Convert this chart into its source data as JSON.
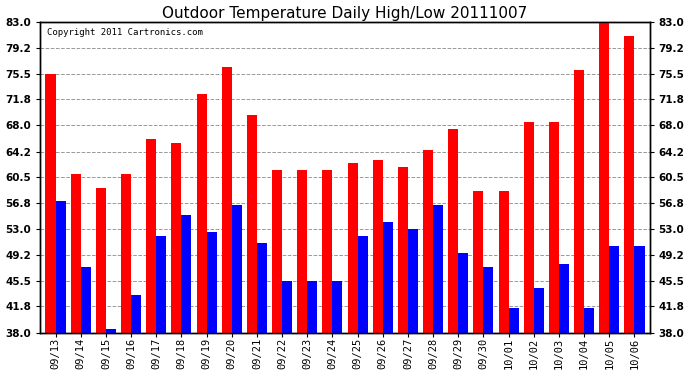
{
  "title": "Outdoor Temperature Daily High/Low 20111007",
  "copyright": "Copyright 2011 Cartronics.com",
  "dates": [
    "09/13",
    "09/14",
    "09/15",
    "09/16",
    "09/17",
    "09/18",
    "09/19",
    "09/20",
    "09/21",
    "09/22",
    "09/23",
    "09/24",
    "09/25",
    "09/26",
    "09/27",
    "09/28",
    "09/29",
    "09/30",
    "10/01",
    "10/02",
    "10/03",
    "10/04",
    "10/05",
    "10/06"
  ],
  "highs": [
    75.5,
    61.0,
    59.0,
    61.0,
    66.0,
    65.5,
    72.5,
    76.5,
    69.5,
    61.5,
    61.5,
    61.5,
    62.5,
    63.0,
    62.0,
    64.5,
    67.5,
    58.5,
    58.5,
    68.5,
    68.5,
    76.0,
    83.0,
    81.0
  ],
  "lows": [
    57.0,
    47.5,
    38.5,
    43.5,
    52.0,
    55.0,
    52.5,
    56.5,
    51.0,
    45.5,
    45.5,
    45.5,
    52.0,
    54.0,
    53.0,
    56.5,
    49.5,
    47.5,
    41.5,
    44.5,
    48.0,
    41.5,
    50.5,
    50.5
  ],
  "high_color": "#ff0000",
  "low_color": "#0000ff",
  "bg_color": "#ffffff",
  "grid_color": "#999999",
  "ymin": 38.0,
  "ymax": 83.0,
  "yticks": [
    38.0,
    41.8,
    45.5,
    49.2,
    53.0,
    56.8,
    60.5,
    64.2,
    68.0,
    71.8,
    75.5,
    79.2,
    83.0
  ],
  "bar_width": 0.4,
  "title_fontsize": 11,
  "tick_fontsize": 7.5,
  "copyright_fontsize": 6.5
}
